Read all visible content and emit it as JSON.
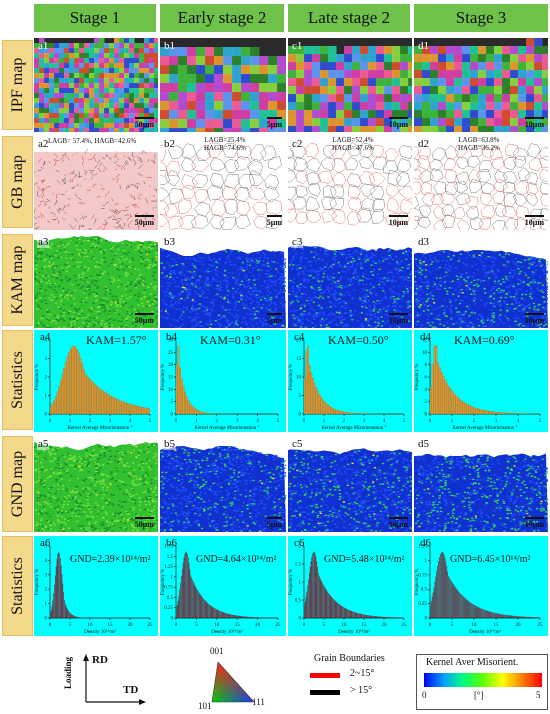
{
  "columns": [
    "Stage 1",
    "Early stage 2",
    "Late stage 2",
    "Stage 3"
  ],
  "rows": [
    "IPF map",
    "GB map",
    "KAM map",
    "Statistics",
    "GND map",
    "Statistics"
  ],
  "panels": {
    "ipf": [
      {
        "tag": "a1",
        "scale": "50μm"
      },
      {
        "tag": "b1",
        "scale": "5μm"
      },
      {
        "tag": "c1",
        "scale": "10μm"
      },
      {
        "tag": "d1",
        "scale": "10μm"
      }
    ],
    "gb": [
      {
        "tag": "a2",
        "scale": "50μm",
        "note": "LAGB= 57.4%, HAGB=42.6%"
      },
      {
        "tag": "b2",
        "scale": "5μm",
        "note1": "LAGB=25.4%",
        "note2": "HAGB=74.6%"
      },
      {
        "tag": "c2",
        "scale": "10μm",
        "note1": "LAGB=52.4%",
        "note2": "HAGB=47.6%"
      },
      {
        "tag": "d2",
        "scale": "10μm",
        "note1": "LAGB=63.8%",
        "note2": "HAGB=36.2%"
      }
    ],
    "kam": [
      {
        "tag": "a3",
        "scale": "50μm"
      },
      {
        "tag": "b3",
        "scale": "5μm"
      },
      {
        "tag": "c3",
        "scale": "10μm"
      },
      {
        "tag": "d3",
        "scale": "10μm"
      }
    ],
    "kam_stats": [
      {
        "tag": "a4",
        "value": "KAM=1.57°"
      },
      {
        "tag": "b4",
        "value": "KAM=0.31°"
      },
      {
        "tag": "c4",
        "value": "KAM=0.50°"
      },
      {
        "tag": "d4",
        "value": "KAM=0.69°"
      }
    ],
    "gnd": [
      {
        "tag": "a5",
        "scale": "50μm"
      },
      {
        "tag": "b5",
        "scale": "5μm"
      },
      {
        "tag": "c5",
        "scale": "10μm"
      },
      {
        "tag": "d5",
        "scale": "10μm"
      }
    ],
    "gnd_stats": [
      {
        "tag": "a6",
        "value": "GND=2.39×10¹⁴/m²"
      },
      {
        "tag": "b6",
        "value": "GND=4.64×10¹⁴/m²"
      },
      {
        "tag": "c6",
        "value": "GND=5.48×10¹⁴/m²"
      },
      {
        "tag": "d6",
        "value": "GND=6.45×10¹⁴/m²"
      }
    ]
  },
  "chart_data": [
    {
      "type": "bar",
      "panel": "a4",
      "xlabel": "Kernel Average Misorientation °",
      "ylabel": "Frequency %",
      "xlim": [
        0,
        5
      ],
      "ylim": [
        0,
        4
      ],
      "xticks": [
        0,
        1,
        2,
        3,
        4,
        5
      ],
      "yticks": [
        0,
        1,
        2,
        3,
        4
      ],
      "peak": 1.2,
      "spread": 0.55,
      "tail": 1.6,
      "color": "#e8962a"
    },
    {
      "type": "bar",
      "panel": "b4",
      "xlabel": "Kernel Average Misorientation °",
      "ylabel": "Frequency %",
      "xlim": [
        0,
        5
      ],
      "ylim": [
        0,
        30
      ],
      "xticks": [
        0,
        1,
        2,
        3,
        4,
        5
      ],
      "yticks": [
        0,
        5,
        10,
        15,
        20,
        25,
        30
      ],
      "peak": 0.12,
      "spread": 0.1,
      "tail": 0.35,
      "color": "#e8962a"
    },
    {
      "type": "bar",
      "panel": "c4",
      "xlabel": "Kernel Average Misorientation °",
      "ylabel": "Frequency %",
      "xlim": [
        0,
        5
      ],
      "ylim": [
        0,
        20
      ],
      "xticks": [
        0,
        1,
        2,
        3,
        4,
        5
      ],
      "yticks": [
        0,
        5,
        10,
        15,
        20
      ],
      "peak": 0.18,
      "spread": 0.12,
      "tail": 0.55,
      "color": "#e8962a"
    },
    {
      "type": "bar",
      "panel": "d4",
      "xlabel": "Kernel Average Misorientation °",
      "ylabel": "Frequency %",
      "xlim": [
        0,
        5
      ],
      "ylim": [
        0,
        12
      ],
      "xticks": [
        0,
        1,
        2,
        3,
        4,
        5
      ],
      "yticks": [
        0,
        2,
        4,
        6,
        8,
        10,
        12
      ],
      "peak": 0.25,
      "spread": 0.15,
      "tail": 0.8,
      "color": "#e8962a"
    },
    {
      "type": "area",
      "panel": "a6",
      "xlabel": "Density 10¹⁴/m²",
      "ylabel": "Frequency %",
      "xlim": [
        0,
        25
      ],
      "ylim": [
        0,
        5
      ],
      "xticks": [
        0,
        5,
        10,
        15,
        20,
        25
      ],
      "yticks": [
        0,
        1,
        2,
        3,
        4,
        5
      ],
      "peak": 2.2,
      "spread": 0.9,
      "tail": 1.2,
      "color": "#7a1020"
    },
    {
      "type": "area",
      "panel": "b6",
      "xlabel": "Density 10¹⁴/m²",
      "ylabel": "Frequency %",
      "xlim": [
        0,
        25
      ],
      "ylim": [
        0,
        1.75
      ],
      "xticks": [
        0,
        5,
        10,
        15,
        20,
        25
      ],
      "yticks": [
        0,
        0.25,
        0.5,
        0.75,
        1,
        1.25,
        1.5,
        1.75
      ],
      "peak": 2.5,
      "spread": 1.2,
      "tail": 4.0,
      "color": "#7a1020"
    },
    {
      "type": "area",
      "panel": "c6",
      "xlabel": "Density 10¹⁴/m²",
      "ylabel": "Frequency %",
      "xlim": [
        0,
        25
      ],
      "ylim": [
        0,
        2.0
      ],
      "xticks": [
        0,
        5,
        10,
        15,
        20,
        25
      ],
      "yticks": [
        0,
        0.5,
        1,
        1.5,
        2
      ],
      "peak": 2.5,
      "spread": 1.3,
      "tail": 4.5,
      "color": "#7a1020"
    },
    {
      "type": "area",
      "panel": "d6",
      "xlabel": "Density 10¹⁴/m²",
      "ylabel": "Frequency %",
      "xlim": [
        0,
        25
      ],
      "ylim": [
        0,
        1.25
      ],
      "xticks": [
        0,
        5,
        10,
        15,
        20,
        25
      ],
      "yticks": [
        0,
        0.25,
        0.5,
        0.75,
        1,
        1.25
      ],
      "peak": 2.8,
      "spread": 1.5,
      "tail": 5.0,
      "color": "#7a1020"
    }
  ],
  "legend": {
    "axes": {
      "y": "RD",
      "x": "TD",
      "loading": "Loading"
    },
    "ipf_triangle": {
      "top": "001",
      "left": "101",
      "right": "111"
    },
    "gb": {
      "title": "Grain Boundaries",
      "low": "2~15°",
      "high": "> 15°",
      "low_color": "#ff0000",
      "high_color": "#000000"
    },
    "kam": {
      "title": "Kernel Aver Misorient.",
      "min": "0",
      "unit": "[°]",
      "max": "5"
    }
  }
}
